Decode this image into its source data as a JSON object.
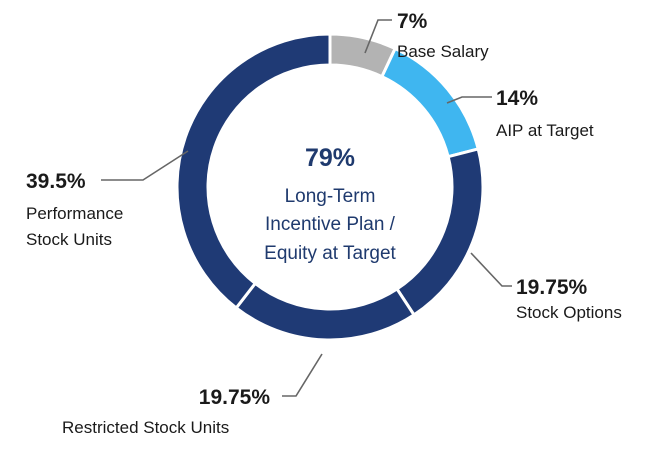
{
  "chart_data": {
    "type": "pie",
    "subtype": "donut",
    "center": {
      "value": "79%",
      "lines": [
        "Long-Term",
        "Incentive Plan /",
        "Equity at Target"
      ]
    },
    "slices": [
      {
        "name": "Base Salary",
        "value": 7,
        "display": "7%",
        "color": "#b3b3b3"
      },
      {
        "name": "AIP at Target",
        "value": 14,
        "display": "14%",
        "color": "#3fb6f0"
      },
      {
        "name": "Stock Options",
        "value": 19.75,
        "display": "19.75%",
        "color": "#1f3a75"
      },
      {
        "name": "Restricted Stock Units",
        "value": 19.75,
        "display": "19.75%",
        "color": "#1f3a75"
      },
      {
        "name": "Performance Stock Units",
        "value": 39.5,
        "display": "39.5%",
        "color": "#1f3a75"
      }
    ],
    "legend_labels": {
      "performance_line1": "Performance",
      "performance_line2": "Stock Units"
    }
  }
}
